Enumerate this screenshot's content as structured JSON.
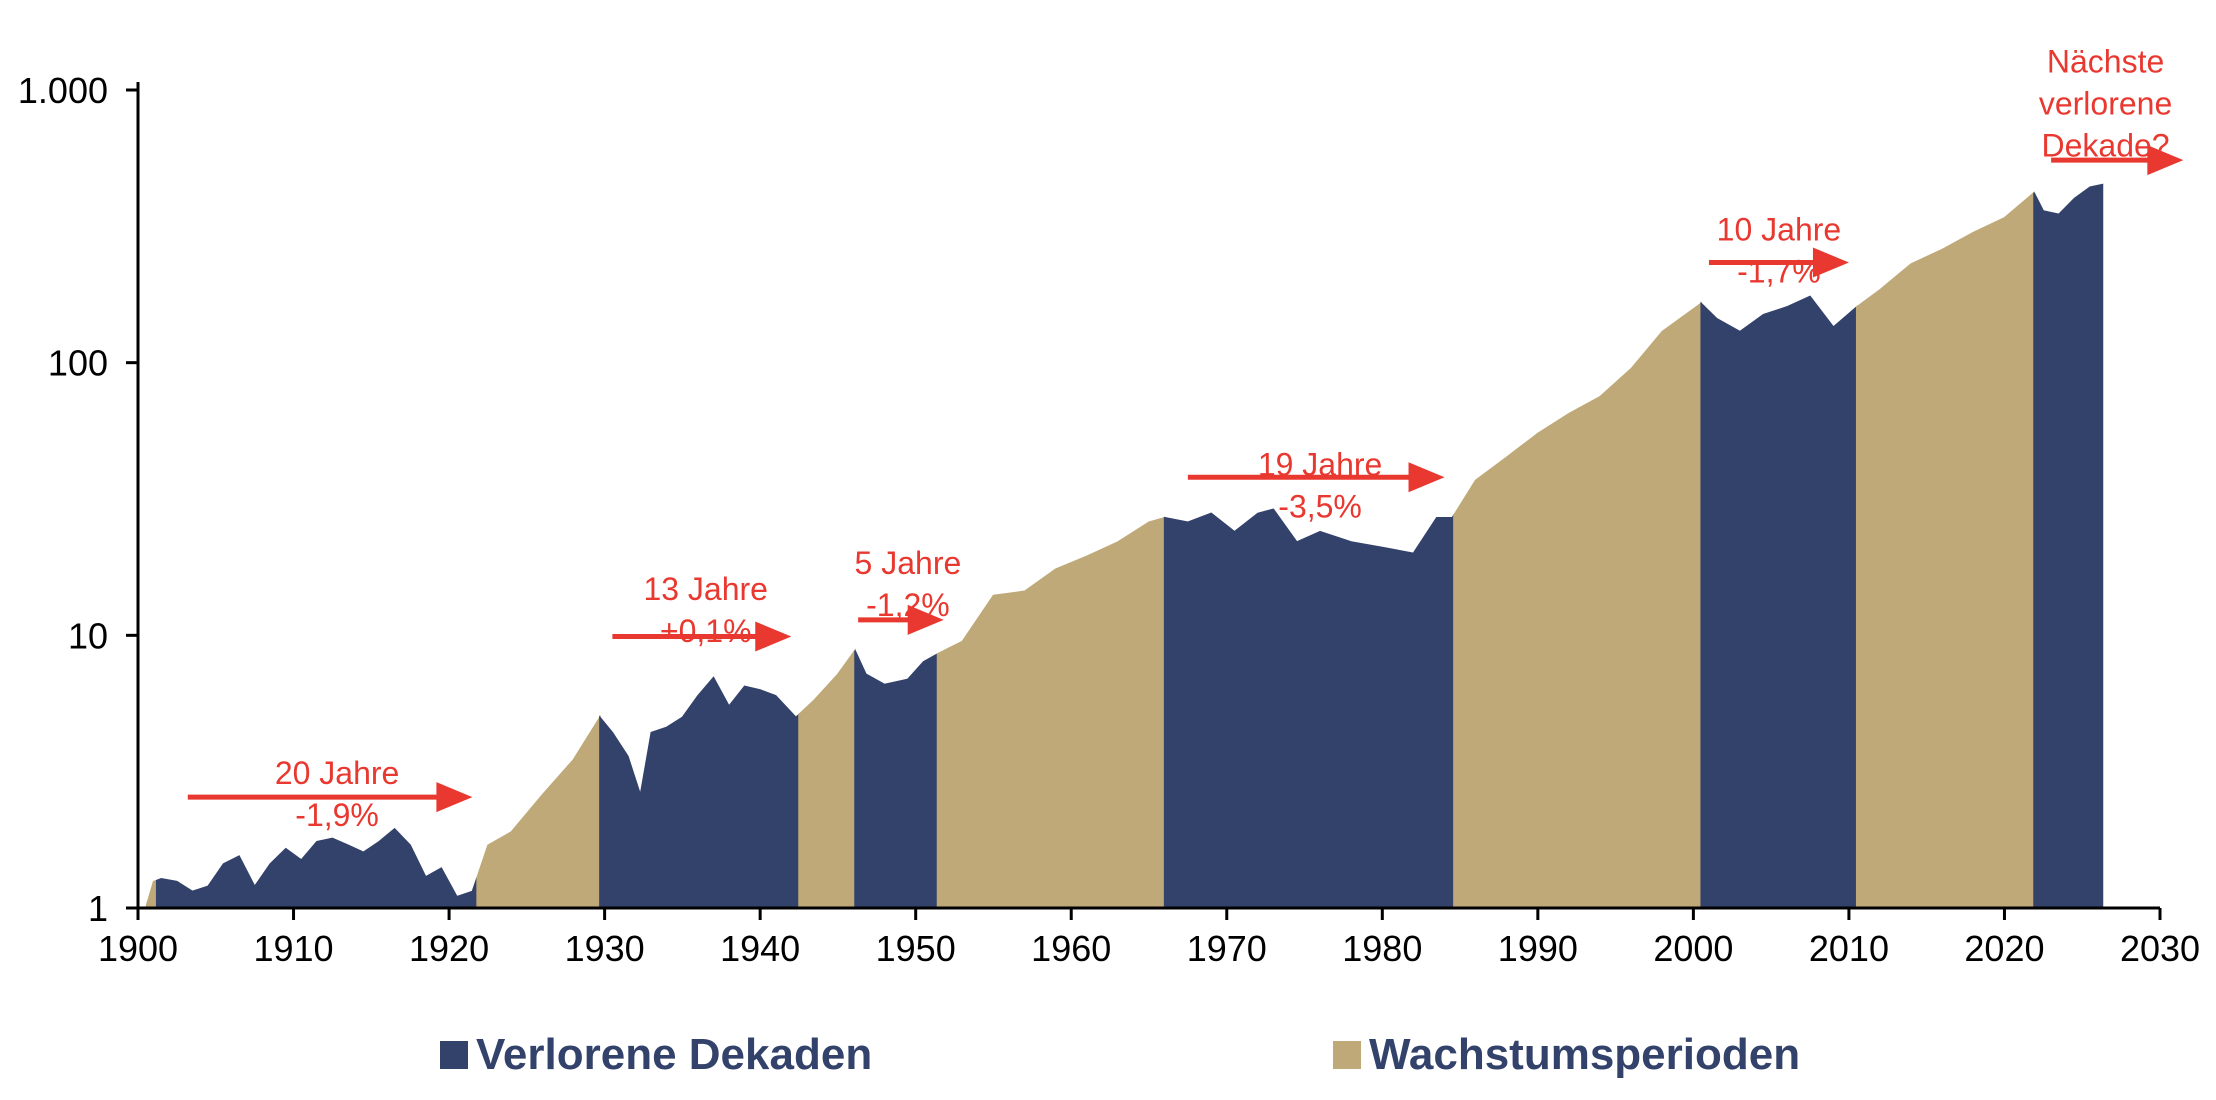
{
  "chart_data": {
    "type": "area",
    "title": "",
    "xlabel": "",
    "ylabel": "",
    "y_scale": "log",
    "xlim": [
      1900,
      2030
    ],
    "ylim": [
      1,
      1000
    ],
    "x_ticks": [
      1900,
      1910,
      1920,
      1930,
      1940,
      1950,
      1960,
      1970,
      1980,
      1990,
      2000,
      2010,
      2020,
      2030
    ],
    "x_tick_labels": [
      "1900",
      "1910",
      "1920",
      "1930",
      "1940",
      "1950",
      "1960",
      "1970",
      "1980",
      "1990",
      "2000",
      "2010",
      "2020",
      "2030"
    ],
    "y_ticks": [
      1,
      10,
      100,
      1000
    ],
    "y_tick_labels": [
      "1",
      "10",
      "100",
      "1.000"
    ],
    "grid": false,
    "colors": {
      "lost": "#33426a",
      "growth": "#bfa978",
      "annotation": "#e8382f",
      "axis": "#000000"
    },
    "series": [
      {
        "name": "Verlorene Dekaden",
        "color": "#33426a"
      },
      {
        "name": "Wachstumsperioden",
        "color": "#bfa978"
      }
    ],
    "legend_position": "bottom",
    "index_points": [
      [
        1900.5,
        1.0
      ],
      [
        1901.0,
        1.25
      ],
      [
        1901.5,
        1.28
      ],
      [
        1902.5,
        1.25
      ],
      [
        1903.5,
        1.15
      ],
      [
        1904.5,
        1.2
      ],
      [
        1905.5,
        1.45
      ],
      [
        1906.5,
        1.55
      ],
      [
        1907.5,
        1.2
      ],
      [
        1908.5,
        1.45
      ],
      [
        1909.5,
        1.65
      ],
      [
        1910.5,
        1.5
      ],
      [
        1911.5,
        1.75
      ],
      [
        1912.5,
        1.8
      ],
      [
        1913.5,
        1.7
      ],
      [
        1914.5,
        1.6
      ],
      [
        1915.5,
        1.75
      ],
      [
        1916.5,
        1.95
      ],
      [
        1917.5,
        1.7
      ],
      [
        1918.5,
        1.3
      ],
      [
        1919.5,
        1.4
      ],
      [
        1920.5,
        1.1
      ],
      [
        1921.5,
        1.15
      ],
      [
        1922.5,
        1.7
      ],
      [
        1924.0,
        1.9
      ],
      [
        1926.0,
        2.6
      ],
      [
        1928.0,
        3.5
      ],
      [
        1929.7,
        5.0
      ],
      [
        1930.5,
        4.4
      ],
      [
        1931.5,
        3.6
      ],
      [
        1932.3,
        2.6
      ],
      [
        1933.0,
        4.4
      ],
      [
        1934.0,
        4.6
      ],
      [
        1935.0,
        5.0
      ],
      [
        1936.0,
        6.0
      ],
      [
        1937.0,
        7.0
      ],
      [
        1938.0,
        5.5
      ],
      [
        1939.0,
        6.5
      ],
      [
        1940.0,
        6.3
      ],
      [
        1941.0,
        6.0
      ],
      [
        1942.3,
        5.0
      ],
      [
        1943.5,
        5.8
      ],
      [
        1945.0,
        7.2
      ],
      [
        1946.1,
        8.8
      ],
      [
        1946.8,
        7.2
      ],
      [
        1948.0,
        6.6
      ],
      [
        1949.5,
        6.9
      ],
      [
        1950.5,
        8.0
      ],
      [
        1951.5,
        8.6
      ],
      [
        1953.0,
        9.5
      ],
      [
        1955.0,
        14.0
      ],
      [
        1957.0,
        14.5
      ],
      [
        1959.0,
        17.5
      ],
      [
        1961.0,
        19.5
      ],
      [
        1963.0,
        22.0
      ],
      [
        1965.0,
        26.0
      ],
      [
        1966.0,
        27.0
      ],
      [
        1967.5,
        26.0
      ],
      [
        1969.0,
        28.0
      ],
      [
        1970.5,
        24.0
      ],
      [
        1972.0,
        28.0
      ],
      [
        1973.0,
        29.0
      ],
      [
        1974.5,
        22.0
      ],
      [
        1976.0,
        24.0
      ],
      [
        1978.0,
        22.0
      ],
      [
        1980.0,
        21.0
      ],
      [
        1982.0,
        20.0
      ],
      [
        1983.5,
        27.0
      ],
      [
        1984.5,
        27.0
      ],
      [
        1986.0,
        37.0
      ],
      [
        1988.0,
        45.0
      ],
      [
        1990.0,
        55.0
      ],
      [
        1992.0,
        65.0
      ],
      [
        1994.0,
        75.0
      ],
      [
        1996.0,
        95.0
      ],
      [
        1998.0,
        130.0
      ],
      [
        2000.5,
        165.0
      ],
      [
        2001.5,
        145.0
      ],
      [
        2003.0,
        130.0
      ],
      [
        2004.5,
        150.0
      ],
      [
        2006.0,
        160.0
      ],
      [
        2007.5,
        175.0
      ],
      [
        2009.0,
        135.0
      ],
      [
        2010.5,
        160.0
      ],
      [
        2012.0,
        185.0
      ],
      [
        2014.0,
        230.0
      ],
      [
        2016.0,
        260.0
      ],
      [
        2018.0,
        300.0
      ],
      [
        2020.0,
        340.0
      ],
      [
        2021.9,
        420.0
      ],
      [
        2022.5,
        360.0
      ],
      [
        2023.5,
        350.0
      ],
      [
        2024.5,
        400.0
      ],
      [
        2025.5,
        440.0
      ],
      [
        2026.3,
        450.0
      ]
    ],
    "periods": [
      {
        "type": "growth",
        "start": 1900.5,
        "end": 1901.2
      },
      {
        "type": "lost",
        "start": 1901.2,
        "end": 1921.8
      },
      {
        "type": "growth",
        "start": 1921.8,
        "end": 1929.7
      },
      {
        "type": "lost",
        "start": 1929.7,
        "end": 1942.5
      },
      {
        "type": "growth",
        "start": 1942.5,
        "end": 1946.1
      },
      {
        "type": "lost",
        "start": 1946.1,
        "end": 1951.4
      },
      {
        "type": "growth",
        "start": 1951.4,
        "end": 1966.0
      },
      {
        "type": "lost",
        "start": 1966.0,
        "end": 1984.6
      },
      {
        "type": "growth",
        "start": 1984.6,
        "end": 2000.5
      },
      {
        "type": "lost",
        "start": 2000.5,
        "end": 2010.5
      },
      {
        "type": "growth",
        "start": 2010.5,
        "end": 2021.9
      },
      {
        "type": "lost",
        "start": 2021.9,
        "end": 2026.3
      }
    ],
    "annotations": [
      {
        "lines": [
          "20 Jahre",
          "-1,9%"
        ],
        "label_x": 1912.8,
        "label_y": 2.85,
        "arrow_x": [
          1903.2,
          1921.5
        ],
        "arrow_y": 2.55
      },
      {
        "lines": [
          "13 Jahre",
          "+0,1%"
        ],
        "label_x": 1936.5,
        "label_y": 13.5,
        "arrow_x": [
          1930.5,
          1942.0
        ],
        "arrow_y": 9.9
      },
      {
        "lines": [
          "5 Jahre",
          "-1,2%"
        ],
        "label_x": 1949.5,
        "label_y": 16.8,
        "arrow_x": [
          1946.3,
          1951.8
        ],
        "arrow_y": 11.4
      },
      {
        "lines": [
          "19 Jahre",
          "-3,5%"
        ],
        "label_x": 1976.0,
        "label_y": 38.5,
        "arrow_x": [
          1967.5,
          1984.0
        ],
        "arrow_y": 38.0
      },
      {
        "lines": [
          "10 Jahre",
          "-1,7%"
        ],
        "label_x": 2005.5,
        "label_y": 280.0,
        "arrow_x": [
          2001.0,
          2010.0
        ],
        "arrow_y": 233.0
      },
      {
        "lines": [
          "Nächste",
          "verlorene",
          "Dekade?"
        ],
        "label_x": 2026.5,
        "label_y": 1160.0,
        "arrow_x": [
          2023.0,
          2031.5
        ],
        "arrow_y": 553.0
      }
    ]
  }
}
